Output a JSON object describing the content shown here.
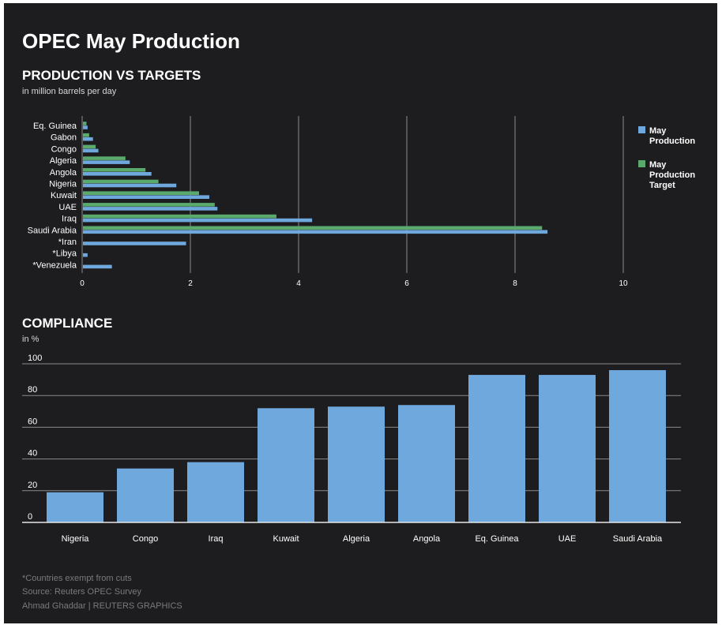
{
  "title": "OPEC May Production",
  "footnote": "*Countries exempt from cuts",
  "source": "Source: Reuters OPEC Survey",
  "credit": "Ahmad Ghaddar    | REUTERS GRAPHICS",
  "colors": {
    "background": "#1d1d1f",
    "production": "#6fa8dc",
    "target": "#5aaa6e",
    "grid": "#8a8a8a",
    "text": "#ffffff"
  },
  "chart_data": [
    {
      "type": "bar",
      "orientation": "horizontal",
      "title": "PRODUCTION VS TARGETS",
      "subtitle": "in million barrels per day",
      "categories": [
        "Eq. Guinea",
        "Gabon",
        "Congo",
        "Algeria",
        "Angola",
        "Nigeria",
        "Kuwait",
        "UAE",
        "Iraq",
        "Saudi Arabia",
        "*Iran",
        "*Libya",
        "*Venezuela"
      ],
      "series": [
        {
          "name": "May Production Target",
          "values": [
            0.08,
            0.13,
            0.25,
            0.8,
            1.17,
            1.41,
            2.16,
            2.45,
            3.59,
            8.5,
            null,
            null,
            null
          ]
        },
        {
          "name": "May Production",
          "values": [
            0.1,
            0.2,
            0.3,
            0.88,
            1.28,
            1.74,
            2.35,
            2.5,
            4.25,
            8.6,
            1.92,
            0.1,
            0.55
          ]
        }
      ],
      "xlim": [
        0,
        10
      ],
      "xticks": [
        0,
        2,
        4,
        6,
        8,
        10
      ],
      "grid": true,
      "legend": "right"
    },
    {
      "type": "bar",
      "title": "COMPLIANCE",
      "subtitle": "in %",
      "categories": [
        "Nigeria",
        "Congo",
        "Iraq",
        "Kuwait",
        "Algeria",
        "Angola",
        "Eq. Guinea",
        "UAE",
        "Saudi Arabia"
      ],
      "values": [
        19,
        34,
        38,
        72,
        73,
        74,
        93,
        93,
        96
      ],
      "ylim": [
        0,
        100
      ],
      "yticks": [
        0,
        20,
        40,
        60,
        80,
        100
      ],
      "grid": true
    }
  ]
}
